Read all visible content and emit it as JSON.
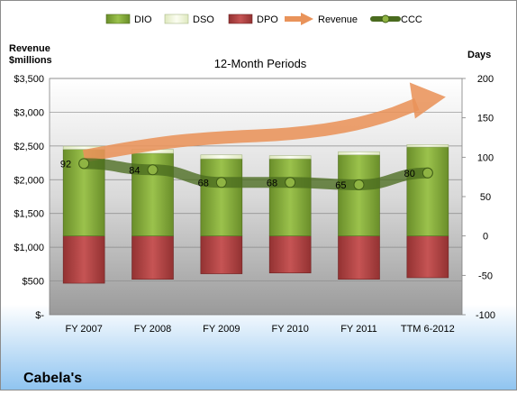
{
  "chart_data": {
    "type": "bar",
    "title": "12-Month Periods",
    "company": "Cabela's",
    "y_left_label_line1": "Revenue",
    "y_left_label_line2": "$millions",
    "y_right_label": "Days",
    "categories": [
      "FY 2007",
      "FY 2008",
      "FY 2009",
      "FY 2010",
      "FY 2011",
      "TTM 6-2012"
    ],
    "y_left_ticks": [
      "$-",
      "$500",
      "$1,000",
      "$1,500",
      "$2,000",
      "$2,500",
      "$3,000",
      "$3,500"
    ],
    "y_right_ticks": [
      "-100",
      "-50",
      "0",
      "50",
      "100",
      "150",
      "200"
    ],
    "y_left_range": [
      0,
      3500
    ],
    "y_right_range": [
      -100,
      200
    ],
    "legend_placement": "top",
    "grid": true,
    "series": [
      {
        "name": "DIO",
        "axis": "right",
        "kind": "bar",
        "color": "#7ea436",
        "values": [
          110,
          105,
          98,
          98,
          103,
          113
        ]
      },
      {
        "name": "DSO",
        "axis": "right",
        "kind": "bar",
        "color": "#eef5d2",
        "values": [
          4,
          5,
          5,
          4,
          4,
          3
        ]
      },
      {
        "name": "DPO",
        "axis": "right",
        "kind": "bar",
        "color": "#b03e3e",
        "values": [
          -60,
          -55,
          -48,
          -47,
          -55,
          -53
        ]
      },
      {
        "name": "Revenue",
        "axis": "left",
        "kind": "arrow",
        "color": "#e9935a",
        "values": [
          2350,
          2540,
          2630,
          2670,
          2810,
          3160
        ]
      },
      {
        "name": "CCC",
        "axis": "right",
        "kind": "line",
        "color": "#4a6b1f",
        "values": [
          92,
          84,
          68,
          68,
          65,
          80
        ]
      }
    ],
    "data_labels": [
      "92",
      "84",
      "68",
      "68",
      "65",
      "80"
    ]
  }
}
